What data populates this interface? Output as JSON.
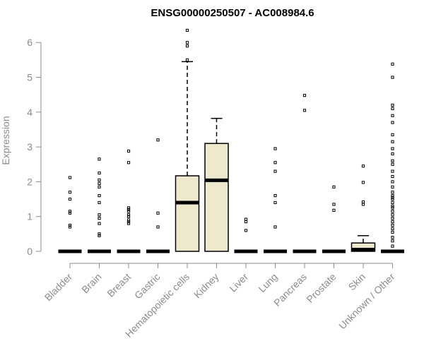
{
  "chart_data": {
    "type": "boxplot",
    "title": "ENSG00000250507 - AC008984.6",
    "ylabel": "Expression",
    "xlabel": "",
    "ylim": [
      0,
      6.5
    ],
    "yticks": [
      "0",
      "1",
      "2",
      "3",
      "4",
      "5",
      "6"
    ],
    "grid": false,
    "legend": "none",
    "box_fill": "#eee8cd",
    "axis_color": "#8c8c8c",
    "categories": [
      {
        "label": "Bladder",
        "q1": 0,
        "median": 0,
        "q3": 0,
        "whisker_low": 0,
        "whisker_high": 0,
        "outliers": [
          0.7,
          0.75,
          1.1,
          1.15,
          1.5,
          1.7,
          2.12
        ]
      },
      {
        "label": "Brain",
        "q1": 0,
        "median": 0,
        "q3": 0,
        "whisker_low": 0,
        "whisker_high": 0,
        "outliers": [
          0.45,
          0.5,
          0.8,
          0.95,
          1.05,
          1.4,
          1.6,
          1.85,
          1.95,
          2.05,
          2.25,
          2.65
        ]
      },
      {
        "label": "Breast",
        "q1": 0,
        "median": 0,
        "q3": 0,
        "whisker_low": 0,
        "whisker_high": 0,
        "outliers": [
          0.8,
          0.85,
          0.9,
          1.0,
          1.05,
          1.15,
          1.2,
          1.25,
          2.55,
          2.88
        ]
      },
      {
        "label": "Gastric",
        "q1": 0,
        "median": 0,
        "q3": 0,
        "whisker_low": 0,
        "whisker_high": 0,
        "outliers": [
          0.7,
          1.1,
          3.2
        ]
      },
      {
        "label": "Hematopoietic cells",
        "q1": 0,
        "median": 1.4,
        "q3": 2.17,
        "whisker_low": 0,
        "whisker_high": 5.45,
        "outliers": [
          5.5,
          5.9,
          6.0,
          6.35
        ]
      },
      {
        "label": "Kidney",
        "q1": 0,
        "median": 2.04,
        "q3": 3.1,
        "whisker_low": 0,
        "whisker_high": 3.82,
        "outliers": []
      },
      {
        "label": "Liver",
        "q1": 0,
        "median": 0,
        "q3": 0,
        "whisker_low": 0,
        "whisker_high": 0,
        "outliers": [
          0.6,
          0.85,
          0.92
        ]
      },
      {
        "label": "Lung",
        "q1": 0,
        "median": 0,
        "q3": 0,
        "whisker_low": 0,
        "whisker_high": 0,
        "outliers": [
          0.7,
          1.4,
          1.6,
          2.3,
          2.55,
          2.95
        ]
      },
      {
        "label": "Pancreas",
        "q1": 0,
        "median": 0,
        "q3": 0,
        "whisker_low": 0,
        "whisker_high": 0,
        "outliers": [
          4.05,
          4.48
        ]
      },
      {
        "label": "Prostate",
        "q1": 0,
        "median": 0,
        "q3": 0,
        "whisker_low": 0,
        "whisker_high": 0,
        "outliers": [
          1.18,
          1.35,
          1.85
        ]
      },
      {
        "label": "Skin",
        "q1": 0,
        "median": 0.05,
        "q3": 0.24,
        "whisker_low": 0,
        "whisker_high": 0.45,
        "outliers": [
          1.35,
          1.42,
          1.98,
          2.45
        ]
      },
      {
        "label": "Unknown / Other",
        "q1": 0,
        "median": 0,
        "q3": 0,
        "whisker_low": 0,
        "whisker_high": 0,
        "outliers": [
          0.15,
          0.3,
          0.4,
          0.55,
          0.65,
          0.75,
          0.85,
          0.95,
          1.05,
          1.15,
          1.25,
          1.3,
          1.4,
          1.5,
          1.55,
          1.6,
          1.7,
          1.85,
          2.0,
          2.15,
          2.3,
          2.5,
          2.6,
          2.8,
          2.95,
          3.15,
          3.35,
          3.7,
          3.9,
          4.1,
          4.2,
          5.0,
          5.38
        ]
      }
    ]
  }
}
